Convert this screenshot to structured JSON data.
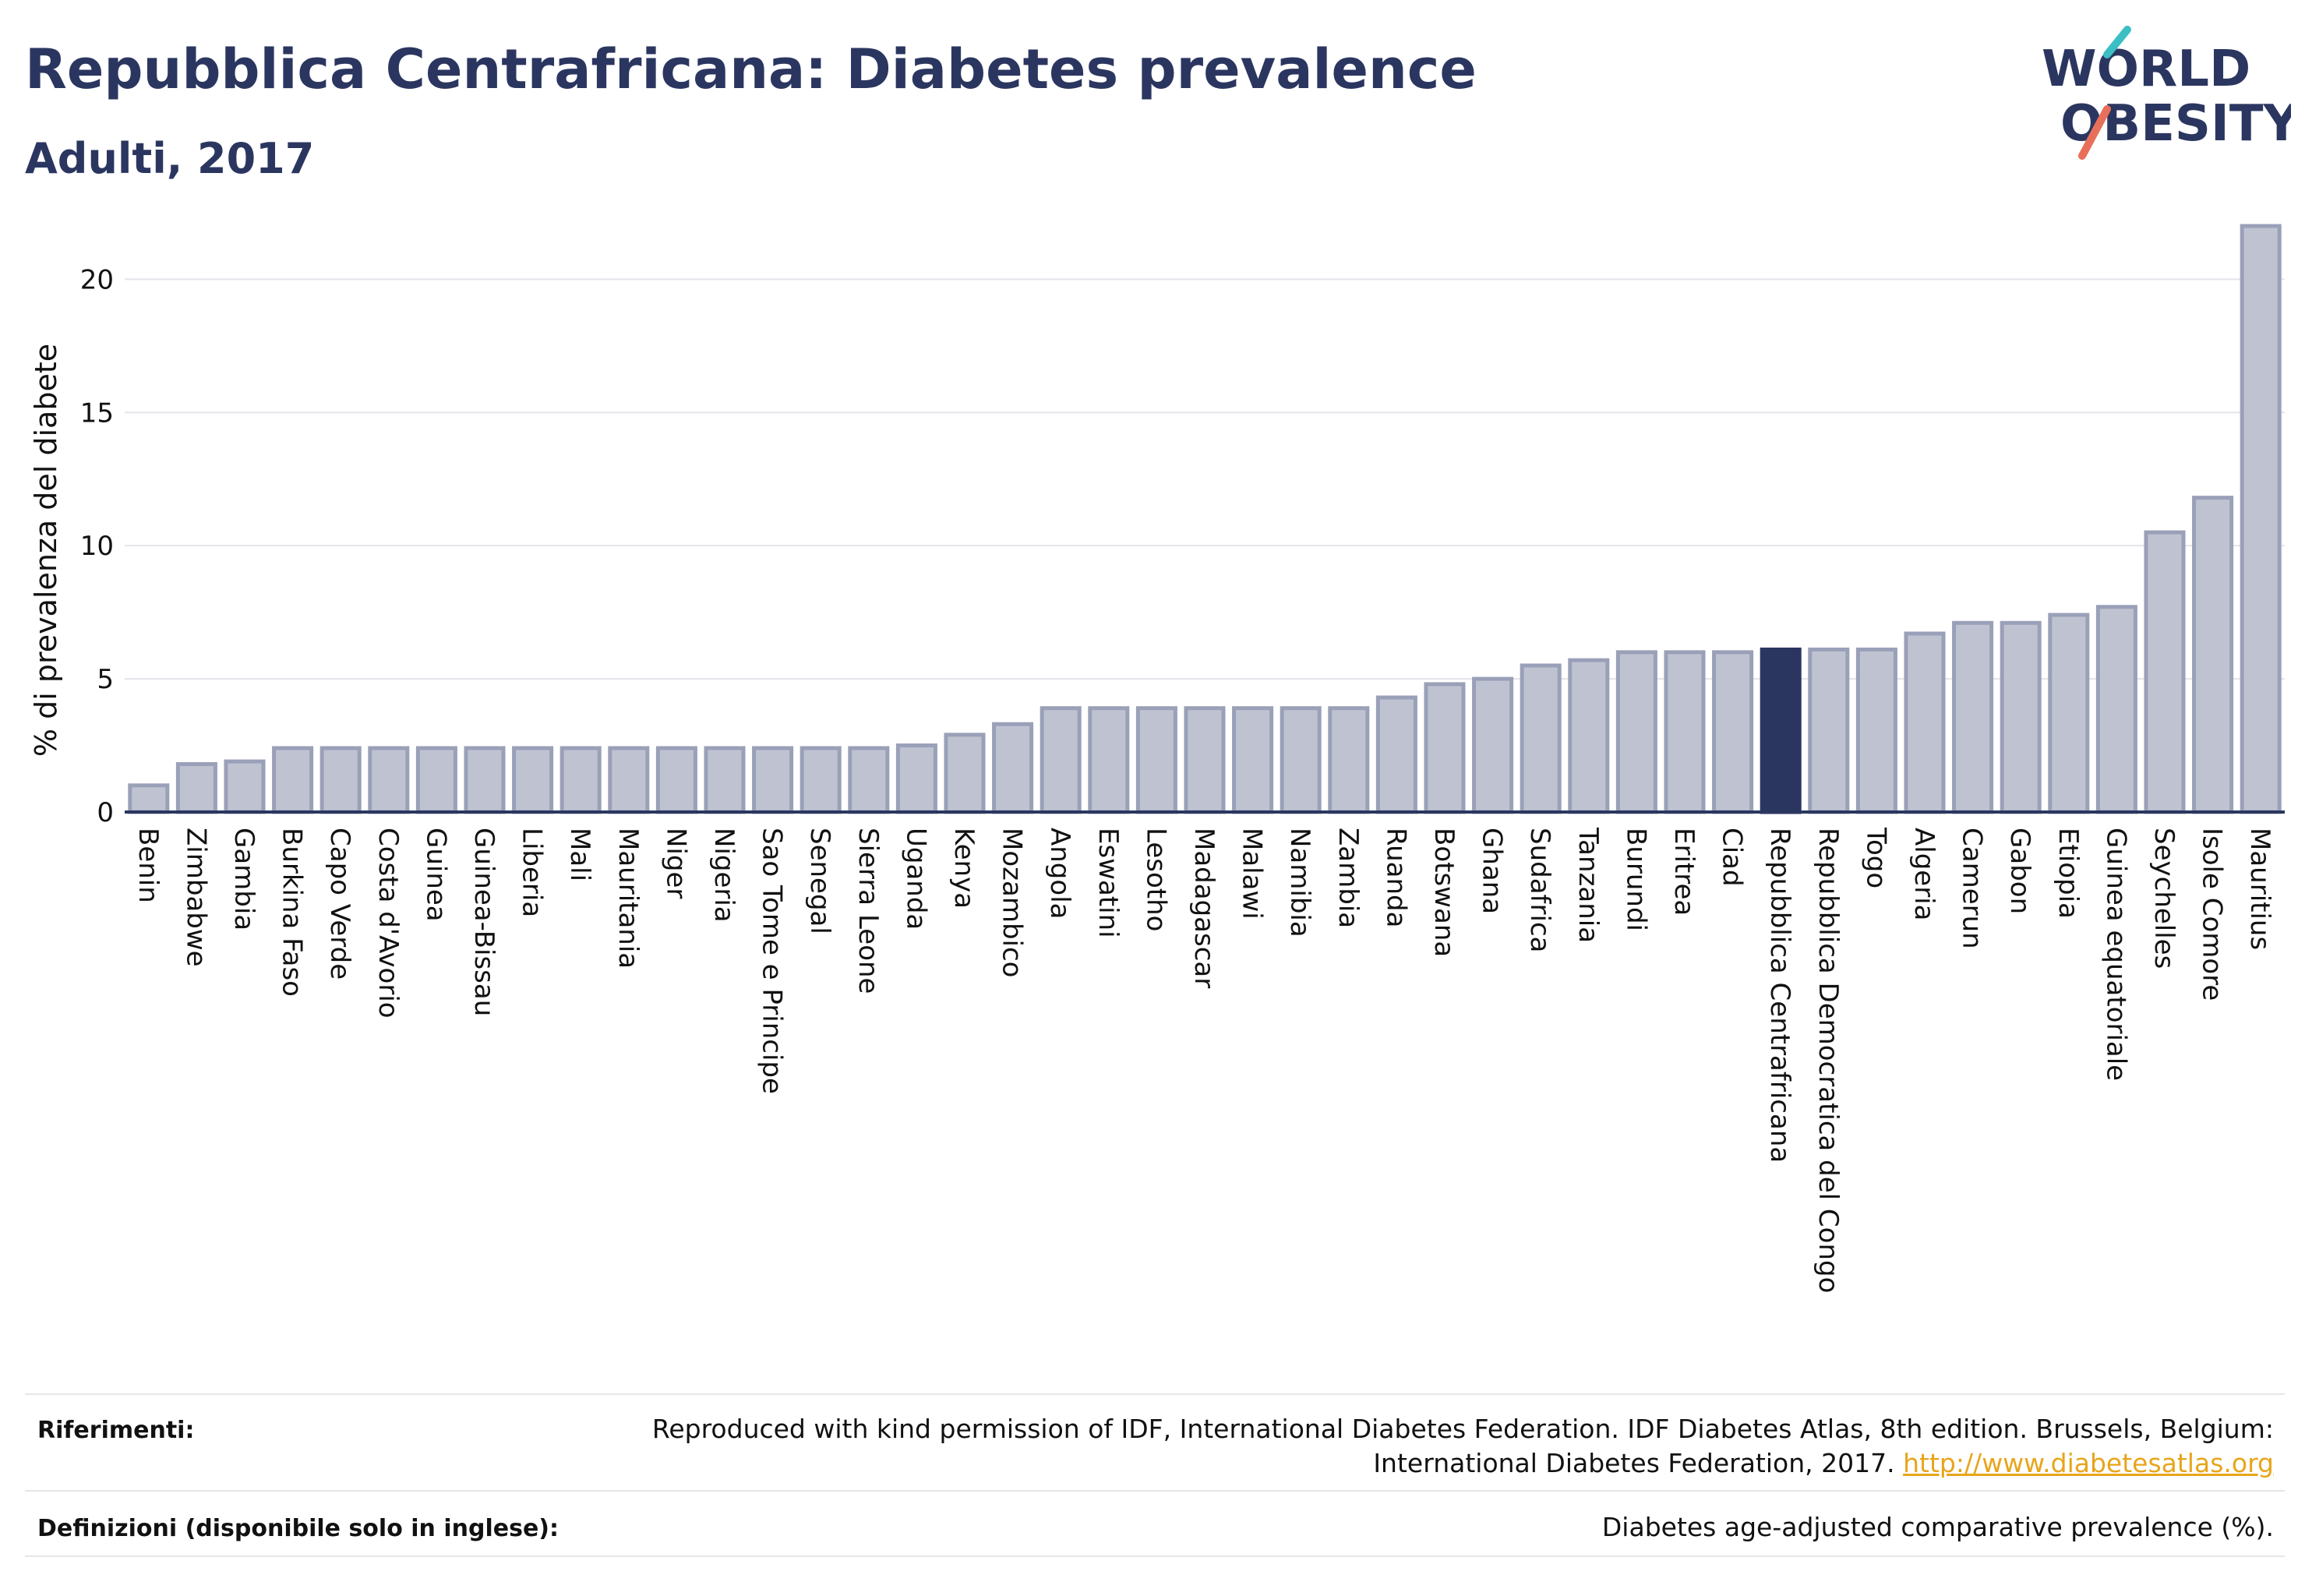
{
  "header": {
    "title": "Repubblica Centrafricana: Diabetes prevalence",
    "subtitle": "Adulti, 2017"
  },
  "logo": {
    "line1": "WORLD",
    "line2": "OBESITY",
    "accent_teal": "#3bbfc4",
    "accent_coral": "#e8705a"
  },
  "colors": {
    "bar": "#bfc3d1",
    "bar_stroke": "#9aa0b8",
    "highlight": "#2b3660",
    "text": "#2b3660"
  },
  "chart_data": {
    "type": "bar",
    "highlight": "Repubblica Centrafricana",
    "ylabel": "% di prevalenza del diabete",
    "ylim": [
      0,
      22
    ],
    "yticks": [
      0,
      5,
      10,
      15,
      20
    ],
    "categories": [
      "Benin",
      "Zimbabwe",
      "Gambia",
      "Burkina Faso",
      "Capo Verde",
      "Costa d'Avorio",
      "Guinea",
      "Guinea-Bissau",
      "Liberia",
      "Mali",
      "Mauritania",
      "Niger",
      "Nigeria",
      "Sao Tome e Principe",
      "Senegal",
      "Sierra Leone",
      "Uganda",
      "Kenya",
      "Mozambico",
      "Angola",
      "Eswatini",
      "Lesotho",
      "Madagascar",
      "Malawi",
      "Namibia",
      "Zambia",
      "Ruanda",
      "Botswana",
      "Ghana",
      "Sudafrica",
      "Tanzania",
      "Burundi",
      "Eritrea",
      "Ciad",
      "Repubblica Centrafricana",
      "Repubblica Democratica del Congo",
      "Togo",
      "Algeria",
      "Camerun",
      "Gabon",
      "Etiopia",
      "Guinea equatoriale",
      "Seychelles",
      "Isole Comore",
      "Mauritius"
    ],
    "values": [
      1.0,
      1.8,
      1.9,
      2.4,
      2.4,
      2.4,
      2.4,
      2.4,
      2.4,
      2.4,
      2.4,
      2.4,
      2.4,
      2.4,
      2.4,
      2.4,
      2.5,
      2.9,
      3.3,
      3.9,
      3.9,
      3.9,
      3.9,
      3.9,
      3.9,
      3.9,
      4.3,
      4.8,
      5.0,
      5.5,
      5.7,
      6.0,
      6.0,
      6.0,
      6.1,
      6.1,
      6.1,
      6.7,
      7.1,
      7.1,
      7.4,
      7.7,
      10.5,
      11.8,
      22.0
    ]
  },
  "footer": {
    "ref_label": "Riferimenti:",
    "ref_text": "Reproduced with kind permission of IDF, International Diabetes Federation. IDF Diabetes Atlas, 8th edition. Brussels, Belgium: International Diabetes Federation, 2017.",
    "ref_link": "http://www.diabetesatlas.org",
    "def_label": "Definizioni (disponibile solo in inglese):",
    "def_text": "Diabetes age-adjusted comparative prevalence (%)."
  }
}
